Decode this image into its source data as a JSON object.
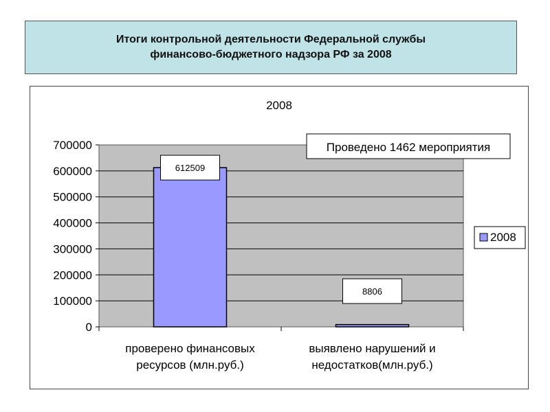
{
  "header": {
    "title_line1": "Итоги контрольной деятельности Федеральной службы",
    "title_line2": "финансово-бюджетного надзора РФ за 2008"
  },
  "annotation": "Проведено 1462 мероприятия",
  "colors": {
    "bar_fill": "#9999ff",
    "plot_bg": "#c0c0c0",
    "title_bg": "#bfe3e6"
  },
  "chart_data": {
    "type": "bar",
    "title": "2008",
    "categories": [
      [
        "проверено финансовых",
        "ресурсов (млн.руб.)"
      ],
      [
        "выявлено нарушений и",
        "недостатков(млн.руб.)"
      ]
    ],
    "series": [
      {
        "name": "2008",
        "values": [
          612509,
          8806
        ]
      }
    ],
    "data_labels": [
      "612509",
      "8806"
    ],
    "y_ticks": [
      "0",
      "100000",
      "200000",
      "300000",
      "400000",
      "500000",
      "600000",
      "700000"
    ],
    "ylim": [
      0,
      700000
    ],
    "grid": true,
    "legend": "right"
  }
}
